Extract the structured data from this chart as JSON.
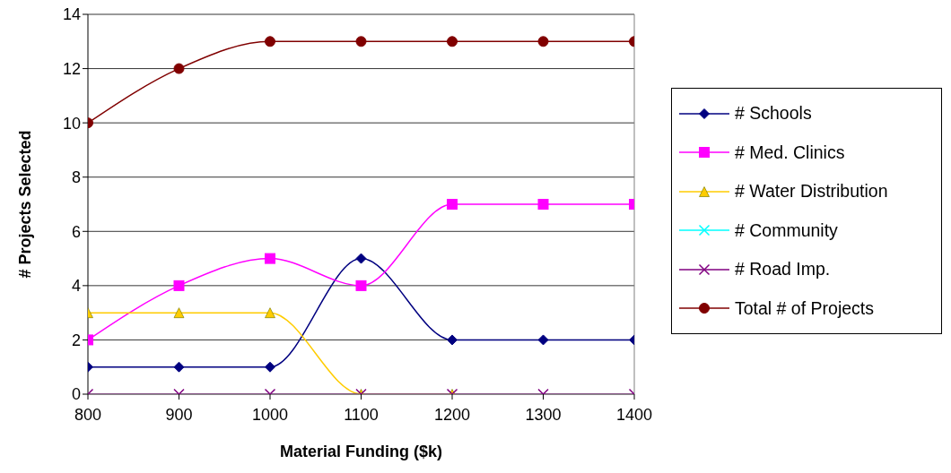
{
  "chart_data": {
    "type": "line",
    "xlabel": "Material Funding ($k)",
    "ylabel": "# Projects Selected",
    "x": [
      800,
      900,
      1000,
      1100,
      1200,
      1300,
      1400
    ],
    "xlim": [
      800,
      1400
    ],
    "xticks": [
      800,
      900,
      1000,
      1100,
      1200,
      1300,
      1400
    ],
    "ylim": [
      0,
      14
    ],
    "yticks": [
      0,
      2,
      4,
      6,
      8,
      10,
      12,
      14
    ],
    "grid": "y",
    "legend": "right",
    "series": [
      {
        "name": "# Schools",
        "color": "#000080",
        "marker": "diamond",
        "values": [
          1,
          1,
          1,
          5,
          2,
          2,
          2
        ]
      },
      {
        "name": "# Med. Clinics",
        "color": "#ff00ff",
        "marker": "square",
        "values": [
          2,
          4,
          5,
          4,
          7,
          7,
          7
        ]
      },
      {
        "name": "# Water Distribution",
        "color": "#ffcc00",
        "marker": "triangle",
        "values": [
          3,
          3,
          3,
          0,
          0,
          null,
          null
        ]
      },
      {
        "name": "# Community",
        "color": "#00ffff",
        "marker": "cross",
        "values": [
          null,
          null,
          null,
          null,
          null,
          null,
          null
        ]
      },
      {
        "name": "# Road Imp.",
        "color": "#800080",
        "marker": "cross",
        "values": [
          0,
          0,
          0,
          0,
          0,
          0,
          0
        ]
      },
      {
        "name": "Total # of Projects",
        "color": "#800000",
        "marker": "circle",
        "values": [
          10,
          12,
          13,
          13,
          13,
          13,
          13
        ]
      }
    ]
  }
}
